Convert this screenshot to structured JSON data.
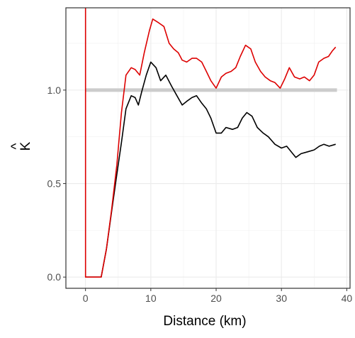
{
  "chart_data": {
    "type": "line",
    "xlabel": "Distance (km)",
    "ylabel": "K",
    "ylabel_accent": "^",
    "xlim": [
      -3,
      40.5
    ],
    "ylim": [
      -0.06,
      1.44
    ],
    "x_ticks": [
      0,
      10,
      20,
      30,
      40
    ],
    "y_ticks": [
      0.0,
      0.5,
      1.0
    ],
    "x_tick_labels": [
      "0",
      "10",
      "20",
      "30",
      "40"
    ],
    "y_tick_labels": [
      "0.0",
      "0.5",
      "1.0"
    ],
    "grid": true,
    "legend": "none",
    "reference_line": {
      "y": 1.0,
      "x_range": [
        0,
        38.5
      ],
      "color": "#cccccc"
    },
    "series": [
      {
        "color": "#000000",
        "points": [
          [
            0,
            0
          ],
          [
            2.4,
            0
          ],
          [
            3.2,
            0.15
          ],
          [
            4,
            0.35
          ],
          [
            4.8,
            0.55
          ],
          [
            5.5,
            0.72
          ],
          [
            6.2,
            0.9
          ],
          [
            7,
            0.97
          ],
          [
            7.6,
            0.96
          ],
          [
            8.1,
            0.92
          ],
          [
            8.6,
            0.99
          ],
          [
            9.3,
            1.08
          ],
          [
            10,
            1.15
          ],
          [
            10.8,
            1.12
          ],
          [
            11.5,
            1.05
          ],
          [
            12.3,
            1.08
          ],
          [
            13.2,
            1.02
          ],
          [
            14,
            0.97
          ],
          [
            14.8,
            0.92
          ],
          [
            15.5,
            0.94
          ],
          [
            16.3,
            0.96
          ],
          [
            17,
            0.97
          ],
          [
            17.8,
            0.93
          ],
          [
            18.5,
            0.9
          ],
          [
            19.2,
            0.85
          ],
          [
            20,
            0.77
          ],
          [
            20.8,
            0.77
          ],
          [
            21.5,
            0.8
          ],
          [
            22.5,
            0.79
          ],
          [
            23.3,
            0.8
          ],
          [
            24,
            0.85
          ],
          [
            24.7,
            0.88
          ],
          [
            25.5,
            0.86
          ],
          [
            26.3,
            0.8
          ],
          [
            27.2,
            0.77
          ],
          [
            28,
            0.75
          ],
          [
            29,
            0.71
          ],
          [
            30,
            0.69
          ],
          [
            30.8,
            0.7
          ],
          [
            31.5,
            0.67
          ],
          [
            32.2,
            0.64
          ],
          [
            33,
            0.66
          ],
          [
            34,
            0.67
          ],
          [
            35,
            0.68
          ],
          [
            35.8,
            0.7
          ],
          [
            36.5,
            0.71
          ],
          [
            37.3,
            0.7
          ],
          [
            38.3,
            0.71
          ]
        ]
      },
      {
        "color": "#dd0000",
        "points": [
          [
            0,
            1.45
          ],
          [
            0,
            0
          ],
          [
            2.4,
            0
          ],
          [
            3.2,
            0.15
          ],
          [
            4,
            0.36
          ],
          [
            4.8,
            0.6
          ],
          [
            5.5,
            0.88
          ],
          [
            6.2,
            1.08
          ],
          [
            7,
            1.12
          ],
          [
            7.6,
            1.11
          ],
          [
            8.3,
            1.08
          ],
          [
            9,
            1.2
          ],
          [
            9.8,
            1.32
          ],
          [
            10.3,
            1.38
          ],
          [
            11.2,
            1.36
          ],
          [
            12,
            1.34
          ],
          [
            12.8,
            1.25
          ],
          [
            13.5,
            1.22
          ],
          [
            14.2,
            1.2
          ],
          [
            14.8,
            1.16
          ],
          [
            15.5,
            1.15
          ],
          [
            16.3,
            1.17
          ],
          [
            17,
            1.17
          ],
          [
            17.8,
            1.15
          ],
          [
            18.5,
            1.1
          ],
          [
            19.2,
            1.05
          ],
          [
            20,
            1.01
          ],
          [
            20.8,
            1.07
          ],
          [
            21.5,
            1.09
          ],
          [
            22.3,
            1.1
          ],
          [
            23,
            1.12
          ],
          [
            23.7,
            1.18
          ],
          [
            24.5,
            1.24
          ],
          [
            25.3,
            1.22
          ],
          [
            26,
            1.15
          ],
          [
            26.8,
            1.1
          ],
          [
            27.5,
            1.07
          ],
          [
            28.3,
            1.05
          ],
          [
            29,
            1.04
          ],
          [
            29.8,
            1.01
          ],
          [
            30.5,
            1.06
          ],
          [
            31.2,
            1.12
          ],
          [
            32,
            1.07
          ],
          [
            32.8,
            1.06
          ],
          [
            33.5,
            1.07
          ],
          [
            34.3,
            1.05
          ],
          [
            35,
            1.08
          ],
          [
            35.7,
            1.15
          ],
          [
            36.5,
            1.17
          ],
          [
            37.2,
            1.18
          ],
          [
            37.8,
            1.21
          ],
          [
            38.3,
            1.23
          ]
        ]
      }
    ]
  }
}
